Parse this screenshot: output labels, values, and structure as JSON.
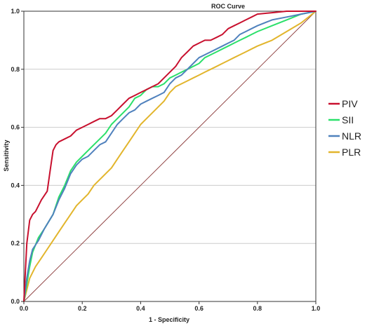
{
  "chart_data": {
    "type": "line",
    "title": "ROC Curve",
    "xlabel": "1 - Specificity",
    "ylabel": "Sensitivity",
    "xlim": [
      0,
      1
    ],
    "ylim": [
      0,
      1
    ],
    "x_ticks": [
      "0.0",
      "0.2",
      "0.4",
      "0.6",
      "0.8",
      "1.0"
    ],
    "y_ticks": [
      "0.0",
      "0.2",
      "0.4",
      "0.6",
      "0.8",
      "1.0"
    ],
    "grid": "horizontal",
    "legend_position": "right",
    "reference_line": {
      "x": [
        0,
        1
      ],
      "y": [
        0,
        1
      ],
      "color": "#8B3A3A"
    },
    "series": [
      {
        "name": "PIV",
        "color": "#C8102E",
        "x": [
          0,
          0.005,
          0.01,
          0.02,
          0.03,
          0.04,
          0.05,
          0.06,
          0.08,
          0.09,
          0.1,
          0.11,
          0.12,
          0.14,
          0.16,
          0.18,
          0.2,
          0.22,
          0.24,
          0.26,
          0.28,
          0.3,
          0.32,
          0.34,
          0.36,
          0.38,
          0.4,
          0.42,
          0.44,
          0.46,
          0.48,
          0.5,
          0.52,
          0.54,
          0.56,
          0.58,
          0.6,
          0.62,
          0.64,
          0.66,
          0.68,
          0.7,
          0.72,
          0.74,
          0.76,
          0.78,
          0.8,
          0.85,
          0.9,
          0.95,
          1.0
        ],
        "y": [
          0,
          0.1,
          0.2,
          0.28,
          0.3,
          0.31,
          0.33,
          0.35,
          0.38,
          0.45,
          0.52,
          0.54,
          0.55,
          0.56,
          0.57,
          0.59,
          0.6,
          0.61,
          0.62,
          0.63,
          0.63,
          0.64,
          0.66,
          0.68,
          0.7,
          0.71,
          0.72,
          0.73,
          0.74,
          0.75,
          0.77,
          0.79,
          0.81,
          0.84,
          0.86,
          0.88,
          0.89,
          0.9,
          0.9,
          0.91,
          0.92,
          0.94,
          0.95,
          0.96,
          0.97,
          0.98,
          0.99,
          0.995,
          1.0,
          1.0,
          1.0
        ]
      },
      {
        "name": "SII",
        "color": "#2BE06A",
        "x": [
          0,
          0.01,
          0.02,
          0.03,
          0.05,
          0.07,
          0.1,
          0.12,
          0.14,
          0.16,
          0.18,
          0.2,
          0.22,
          0.24,
          0.26,
          0.28,
          0.3,
          0.32,
          0.34,
          0.36,
          0.38,
          0.4,
          0.42,
          0.44,
          0.46,
          0.48,
          0.5,
          0.52,
          0.54,
          0.56,
          0.58,
          0.6,
          0.62,
          0.64,
          0.66,
          0.68,
          0.7,
          0.72,
          0.74,
          0.76,
          0.78,
          0.8,
          0.85,
          0.9,
          0.95,
          1.0
        ],
        "y": [
          0,
          0.06,
          0.12,
          0.17,
          0.22,
          0.25,
          0.3,
          0.36,
          0.4,
          0.45,
          0.48,
          0.5,
          0.52,
          0.54,
          0.56,
          0.58,
          0.61,
          0.63,
          0.65,
          0.67,
          0.7,
          0.71,
          0.73,
          0.74,
          0.74,
          0.75,
          0.77,
          0.78,
          0.79,
          0.8,
          0.81,
          0.82,
          0.84,
          0.85,
          0.86,
          0.87,
          0.88,
          0.89,
          0.9,
          0.91,
          0.92,
          0.93,
          0.95,
          0.97,
          0.99,
          1.0
        ]
      },
      {
        "name": "NLR",
        "color": "#4F81BD",
        "x": [
          0,
          0.01,
          0.02,
          0.03,
          0.05,
          0.07,
          0.1,
          0.12,
          0.14,
          0.16,
          0.18,
          0.2,
          0.22,
          0.24,
          0.26,
          0.28,
          0.3,
          0.32,
          0.34,
          0.36,
          0.38,
          0.4,
          0.42,
          0.44,
          0.46,
          0.48,
          0.5,
          0.52,
          0.54,
          0.56,
          0.58,
          0.6,
          0.62,
          0.64,
          0.66,
          0.68,
          0.7,
          0.72,
          0.74,
          0.76,
          0.78,
          0.8,
          0.85,
          0.9,
          0.95,
          1.0
        ],
        "y": [
          0,
          0.08,
          0.14,
          0.18,
          0.21,
          0.25,
          0.3,
          0.35,
          0.39,
          0.44,
          0.47,
          0.49,
          0.5,
          0.52,
          0.54,
          0.55,
          0.58,
          0.61,
          0.63,
          0.65,
          0.66,
          0.68,
          0.69,
          0.7,
          0.71,
          0.72,
          0.75,
          0.77,
          0.78,
          0.8,
          0.82,
          0.84,
          0.85,
          0.86,
          0.87,
          0.88,
          0.89,
          0.9,
          0.92,
          0.93,
          0.94,
          0.95,
          0.97,
          0.98,
          0.99,
          1.0
        ]
      },
      {
        "name": "PLR",
        "color": "#E2B52C",
        "x": [
          0,
          0.01,
          0.02,
          0.04,
          0.06,
          0.08,
          0.1,
          0.12,
          0.14,
          0.16,
          0.18,
          0.2,
          0.22,
          0.24,
          0.26,
          0.28,
          0.3,
          0.32,
          0.34,
          0.36,
          0.38,
          0.4,
          0.42,
          0.44,
          0.46,
          0.48,
          0.5,
          0.52,
          0.54,
          0.56,
          0.58,
          0.6,
          0.62,
          0.64,
          0.66,
          0.68,
          0.7,
          0.72,
          0.74,
          0.76,
          0.78,
          0.8,
          0.85,
          0.9,
          0.95,
          1.0
        ],
        "y": [
          0,
          0.04,
          0.08,
          0.12,
          0.15,
          0.18,
          0.21,
          0.24,
          0.27,
          0.3,
          0.33,
          0.35,
          0.37,
          0.4,
          0.42,
          0.44,
          0.46,
          0.49,
          0.52,
          0.55,
          0.58,
          0.61,
          0.63,
          0.65,
          0.67,
          0.69,
          0.72,
          0.74,
          0.75,
          0.76,
          0.77,
          0.78,
          0.79,
          0.8,
          0.81,
          0.82,
          0.83,
          0.84,
          0.85,
          0.86,
          0.87,
          0.88,
          0.9,
          0.93,
          0.96,
          1.0
        ]
      }
    ]
  }
}
